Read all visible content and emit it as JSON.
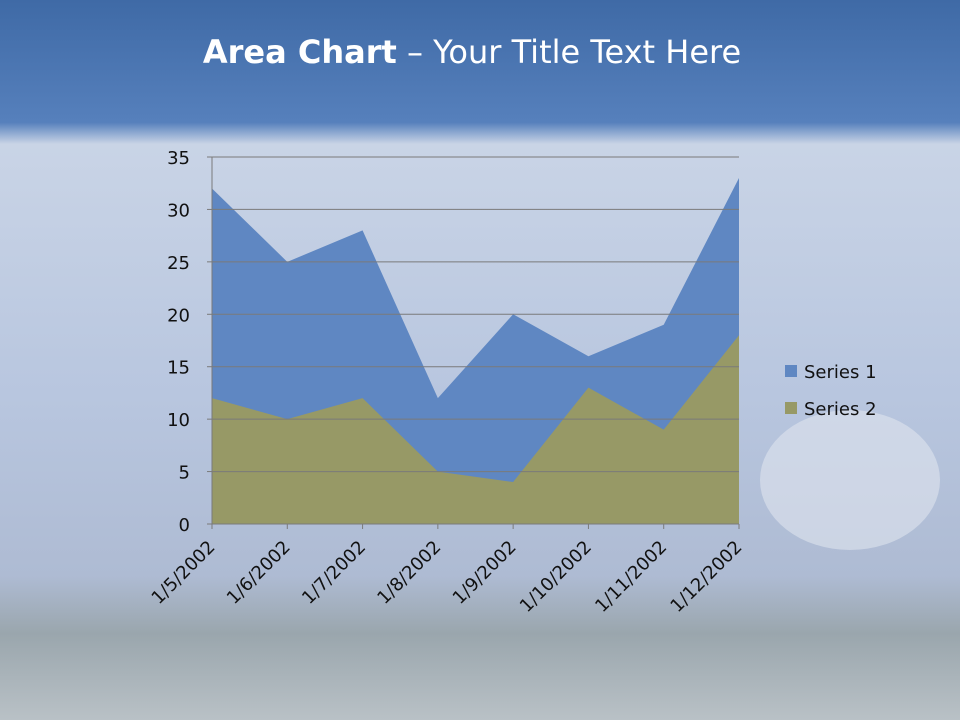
{
  "chart_data": {
    "type": "area",
    "title": {
      "bold": "Area Chart",
      "rest": " – Your Title Text Here"
    },
    "categories": [
      "1/5/2002",
      "1/6/2002",
      "1/7/2002",
      "1/8/2002",
      "1/9/2002",
      "1/10/2002",
      "1/11/2002",
      "1/12/2002"
    ],
    "series": [
      {
        "name": "Series 1",
        "color": "#5f87c2",
        "values": [
          32,
          25,
          28,
          12,
          20,
          16,
          19,
          33
        ]
      },
      {
        "name": "Series 2",
        "color": "#979966",
        "values": [
          12,
          10,
          12,
          5,
          4,
          13,
          9,
          18
        ]
      }
    ],
    "ylim": [
      0,
      35
    ],
    "yticks": [
      0,
      5,
      10,
      15,
      20,
      25,
      30,
      35
    ],
    "grid": true,
    "legend": "right"
  }
}
